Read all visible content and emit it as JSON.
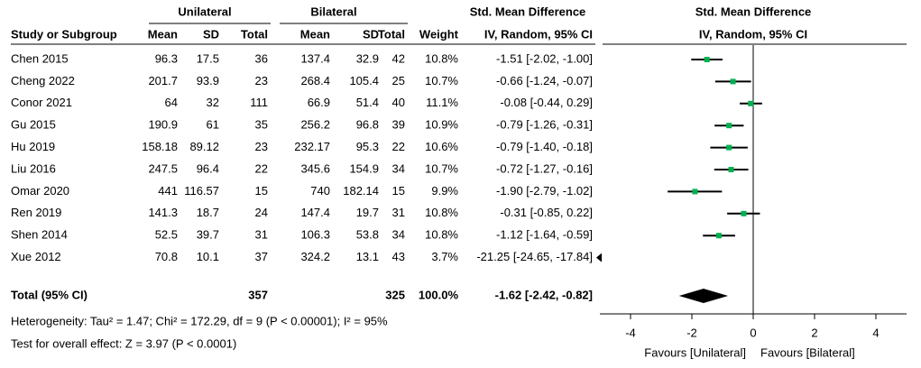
{
  "header": {
    "group_left": "Unilateral",
    "group_right": "Bilateral",
    "group_effect": "Std. Mean Difference",
    "columns": [
      "Study or Subgroup",
      "Mean",
      "SD",
      "Total",
      "Mean",
      "SD",
      "Total",
      "Weight",
      "IV, Random, 95% CI"
    ]
  },
  "studies": [
    {
      "name": "Chen 2015",
      "u_mean": 96.3,
      "u_sd": 17.5,
      "u_total": 36,
      "b_mean": 137.4,
      "b_sd": 32.9,
      "b_total": 42,
      "weight": "10.8%",
      "ci_label": "-1.51 [-2.02, -1.00]",
      "smd": -1.51,
      "ci": [
        -2.02,
        -1.0
      ]
    },
    {
      "name": "Cheng 2022",
      "u_mean": 201.7,
      "u_sd": 93.9,
      "u_total": 23,
      "b_mean": 268.4,
      "b_sd": 105.4,
      "b_total": 25,
      "weight": "10.7%",
      "ci_label": "-0.66 [-1.24, -0.07]",
      "smd": -0.66,
      "ci": [
        -1.24,
        -0.07
      ]
    },
    {
      "name": "Conor 2021",
      "u_mean": 64,
      "u_sd": 32,
      "u_total": 111,
      "b_mean": 66.9,
      "b_sd": 51.4,
      "b_total": 40,
      "weight": "11.1%",
      "ci_label": "-0.08 [-0.44, 0.29]",
      "smd": -0.08,
      "ci": [
        -0.44,
        0.29
      ]
    },
    {
      "name": "Gu 2015",
      "u_mean": 190.9,
      "u_sd": 61,
      "u_total": 35,
      "b_mean": 256.2,
      "b_sd": 96.8,
      "b_total": 39,
      "weight": "10.9%",
      "ci_label": "-0.79 [-1.26, -0.31]",
      "smd": -0.79,
      "ci": [
        -1.26,
        -0.31
      ]
    },
    {
      "name": "Hu 2019",
      "u_mean": 158.18,
      "u_sd": 89.12,
      "u_total": 23,
      "b_mean": 232.17,
      "b_sd": 95.3,
      "b_total": 22,
      "weight": "10.6%",
      "ci_label": "-0.79 [-1.40, -0.18]",
      "smd": -0.79,
      "ci": [
        -1.4,
        -0.18
      ]
    },
    {
      "name": "Liu 2016",
      "u_mean": 247.5,
      "u_sd": 96.4,
      "u_total": 22,
      "b_mean": 345.6,
      "b_sd": 154.9,
      "b_total": 34,
      "weight": "10.7%",
      "ci_label": "-0.72 [-1.27, -0.16]",
      "smd": -0.72,
      "ci": [
        -1.27,
        -0.16
      ]
    },
    {
      "name": "Omar 2020",
      "u_mean": 441,
      "u_sd": 116.57,
      "u_total": 15,
      "b_mean": 740,
      "b_sd": 182.14,
      "b_total": 15,
      "weight": "9.9%",
      "ci_label": "-1.90 [-2.79, -1.02]",
      "smd": -1.9,
      "ci": [
        -2.79,
        -1.02
      ]
    },
    {
      "name": "Ren 2019",
      "u_mean": 141.3,
      "u_sd": 18.7,
      "u_total": 24,
      "b_mean": 147.4,
      "b_sd": 19.7,
      "b_total": 31,
      "weight": "10.8%",
      "ci_label": "-0.31 [-0.85, 0.22]",
      "smd": -0.31,
      "ci": [
        -0.85,
        0.22
      ]
    },
    {
      "name": "Shen 2014",
      "u_mean": 52.5,
      "u_sd": 39.7,
      "u_total": 31,
      "b_mean": 106.3,
      "b_sd": 53.8,
      "b_total": 34,
      "weight": "10.8%",
      "ci_label": "-1.12 [-1.64, -0.59]",
      "smd": -1.12,
      "ci": [
        -1.64,
        -0.59
      ]
    },
    {
      "name": "Xue 2012",
      "u_mean": 70.8,
      "u_sd": 10.1,
      "u_total": 37,
      "b_mean": 324.2,
      "b_sd": 13.1,
      "b_total": 43,
      "weight": "3.7%",
      "ci_label": "-21.25 [-24.65, -17.84]",
      "smd": -21.25,
      "ci": [
        -24.65,
        -17.84
      ]
    }
  ],
  "total": {
    "name": "Total (95% CI)",
    "u_total": 357,
    "b_total": 325,
    "weight": "100.0%",
    "ci_label": "-1.62 [-2.42, -0.82]",
    "smd": -1.62,
    "ci": [
      -2.42,
      -0.82
    ]
  },
  "heterogeneity": "Heterogeneity: Tau² = 1.47; Chi² = 172.29, df = 9 (P < 0.00001); I² = 95%",
  "overall_test": "Test for overall effect: Z = 3.97 (P < 0.0001)",
  "plot": {
    "title": "Std. Mean Difference",
    "subtitle": "IV, Random, 95% CI",
    "xlim": [
      -5,
      5
    ],
    "xticks": [
      -4,
      -2,
      0,
      2,
      4
    ],
    "left_label": "Favours [Unilateral]",
    "right_label": "Favours [Bilateral]",
    "point_color": "#00b050"
  }
}
